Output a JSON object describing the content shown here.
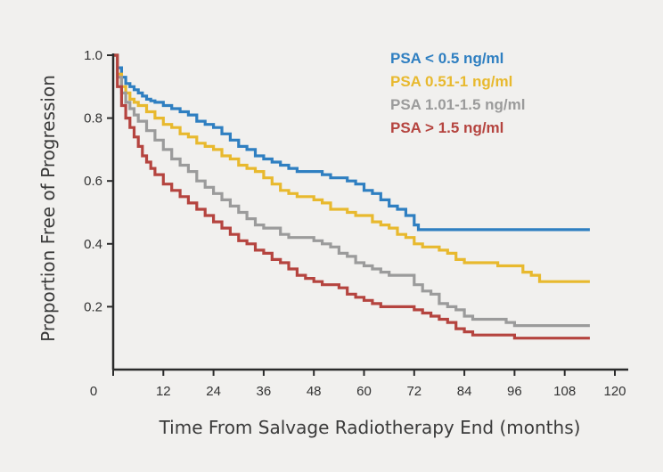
{
  "chart_data": {
    "type": "line",
    "subtype": "kaplan-meier step curves",
    "xlabel": "Time From Salvage Radiotherapy End (months)",
    "ylabel": "Proportion Free of Progression",
    "xlim": [
      0,
      120
    ],
    "ylim": [
      0,
      1.0
    ],
    "x_ticks": [
      0,
      12,
      24,
      36,
      48,
      60,
      72,
      84,
      96,
      108,
      120
    ],
    "y_ticks": [
      0.2,
      0.4,
      0.6,
      0.8,
      1.0
    ],
    "y_tick_labels": [
      "0.2",
      "0.4",
      "0.6",
      "0.8",
      "1.0"
    ],
    "grid": false,
    "legend_position": "top-right",
    "series": [
      {
        "name": "PSA < 0.5 ng/ml",
        "color": "#2f7fc1",
        "points": [
          [
            0,
            1.0
          ],
          [
            1,
            0.96
          ],
          [
            2,
            0.93
          ],
          [
            3,
            0.91
          ],
          [
            4,
            0.9
          ],
          [
            5,
            0.89
          ],
          [
            6,
            0.88
          ],
          [
            7,
            0.87
          ],
          [
            8,
            0.86
          ],
          [
            9,
            0.855
          ],
          [
            10,
            0.85
          ],
          [
            12,
            0.84
          ],
          [
            14,
            0.83
          ],
          [
            16,
            0.82
          ],
          [
            18,
            0.81
          ],
          [
            20,
            0.79
          ],
          [
            22,
            0.78
          ],
          [
            24,
            0.77
          ],
          [
            26,
            0.75
          ],
          [
            28,
            0.73
          ],
          [
            30,
            0.71
          ],
          [
            32,
            0.7
          ],
          [
            34,
            0.68
          ],
          [
            36,
            0.67
          ],
          [
            38,
            0.66
          ],
          [
            40,
            0.65
          ],
          [
            42,
            0.64
          ],
          [
            44,
            0.63
          ],
          [
            46,
            0.63
          ],
          [
            48,
            0.63
          ],
          [
            50,
            0.62
          ],
          [
            52,
            0.61
          ],
          [
            54,
            0.61
          ],
          [
            56,
            0.6
          ],
          [
            58,
            0.59
          ],
          [
            60,
            0.57
          ],
          [
            62,
            0.56
          ],
          [
            64,
            0.54
          ],
          [
            66,
            0.52
          ],
          [
            68,
            0.51
          ],
          [
            70,
            0.49
          ],
          [
            72,
            0.46
          ],
          [
            73,
            0.445
          ],
          [
            80,
            0.445
          ],
          [
            90,
            0.445
          ],
          [
            100,
            0.445
          ],
          [
            114,
            0.445
          ]
        ]
      },
      {
        "name": "PSA 0.51-1 ng/ml",
        "color": "#e8b92e",
        "points": [
          [
            0,
            1.0
          ],
          [
            1,
            0.94
          ],
          [
            2,
            0.9
          ],
          [
            3,
            0.88
          ],
          [
            4,
            0.86
          ],
          [
            5,
            0.85
          ],
          [
            6,
            0.84
          ],
          [
            8,
            0.82
          ],
          [
            10,
            0.8
          ],
          [
            12,
            0.78
          ],
          [
            14,
            0.77
          ],
          [
            16,
            0.75
          ],
          [
            18,
            0.74
          ],
          [
            20,
            0.72
          ],
          [
            22,
            0.71
          ],
          [
            24,
            0.7
          ],
          [
            26,
            0.68
          ],
          [
            28,
            0.67
          ],
          [
            30,
            0.65
          ],
          [
            32,
            0.64
          ],
          [
            34,
            0.63
          ],
          [
            36,
            0.61
          ],
          [
            38,
            0.59
          ],
          [
            40,
            0.57
          ],
          [
            42,
            0.56
          ],
          [
            44,
            0.55
          ],
          [
            48,
            0.54
          ],
          [
            50,
            0.53
          ],
          [
            52,
            0.51
          ],
          [
            56,
            0.5
          ],
          [
            58,
            0.49
          ],
          [
            62,
            0.47
          ],
          [
            64,
            0.46
          ],
          [
            66,
            0.45
          ],
          [
            68,
            0.43
          ],
          [
            70,
            0.42
          ],
          [
            72,
            0.4
          ],
          [
            74,
            0.39
          ],
          [
            76,
            0.39
          ],
          [
            78,
            0.38
          ],
          [
            80,
            0.37
          ],
          [
            82,
            0.35
          ],
          [
            84,
            0.34
          ],
          [
            90,
            0.34
          ],
          [
            92,
            0.33
          ],
          [
            96,
            0.33
          ],
          [
            98,
            0.31
          ],
          [
            100,
            0.3
          ],
          [
            102,
            0.28
          ],
          [
            106,
            0.28
          ],
          [
            114,
            0.28
          ]
        ]
      },
      {
        "name": "PSA 1.01-1.5 ng/ml",
        "color": "#9b9b9b",
        "points": [
          [
            0,
            1.0
          ],
          [
            1,
            0.93
          ],
          [
            2,
            0.88
          ],
          [
            3,
            0.85
          ],
          [
            4,
            0.83
          ],
          [
            5,
            0.81
          ],
          [
            6,
            0.79
          ],
          [
            8,
            0.76
          ],
          [
            10,
            0.73
          ],
          [
            12,
            0.7
          ],
          [
            14,
            0.67
          ],
          [
            16,
            0.65
          ],
          [
            18,
            0.63
          ],
          [
            20,
            0.6
          ],
          [
            22,
            0.58
          ],
          [
            24,
            0.56
          ],
          [
            26,
            0.54
          ],
          [
            28,
            0.52
          ],
          [
            30,
            0.5
          ],
          [
            32,
            0.48
          ],
          [
            34,
            0.46
          ],
          [
            36,
            0.45
          ],
          [
            40,
            0.43
          ],
          [
            42,
            0.42
          ],
          [
            48,
            0.41
          ],
          [
            50,
            0.4
          ],
          [
            52,
            0.39
          ],
          [
            54,
            0.37
          ],
          [
            56,
            0.36
          ],
          [
            58,
            0.34
          ],
          [
            60,
            0.33
          ],
          [
            62,
            0.32
          ],
          [
            64,
            0.31
          ],
          [
            66,
            0.3
          ],
          [
            70,
            0.3
          ],
          [
            72,
            0.27
          ],
          [
            74,
            0.25
          ],
          [
            76,
            0.24
          ],
          [
            78,
            0.21
          ],
          [
            80,
            0.2
          ],
          [
            82,
            0.19
          ],
          [
            84,
            0.17
          ],
          [
            86,
            0.16
          ],
          [
            88,
            0.16
          ],
          [
            92,
            0.16
          ],
          [
            94,
            0.15
          ],
          [
            96,
            0.14
          ],
          [
            100,
            0.14
          ],
          [
            114,
            0.14
          ]
        ]
      },
      {
        "name": "PSA > 1.5 ng/ml",
        "color": "#b5443f",
        "points": [
          [
            0,
            1.0
          ],
          [
            1,
            0.9
          ],
          [
            2,
            0.84
          ],
          [
            3,
            0.8
          ],
          [
            4,
            0.77
          ],
          [
            5,
            0.74
          ],
          [
            6,
            0.71
          ],
          [
            7,
            0.68
          ],
          [
            8,
            0.66
          ],
          [
            9,
            0.64
          ],
          [
            10,
            0.62
          ],
          [
            12,
            0.59
          ],
          [
            14,
            0.57
          ],
          [
            16,
            0.55
          ],
          [
            18,
            0.53
          ],
          [
            20,
            0.51
          ],
          [
            22,
            0.49
          ],
          [
            24,
            0.47
          ],
          [
            26,
            0.45
          ],
          [
            28,
            0.43
          ],
          [
            30,
            0.41
          ],
          [
            32,
            0.4
          ],
          [
            34,
            0.38
          ],
          [
            36,
            0.37
          ],
          [
            38,
            0.35
          ],
          [
            40,
            0.34
          ],
          [
            42,
            0.32
          ],
          [
            44,
            0.3
          ],
          [
            46,
            0.29
          ],
          [
            48,
            0.28
          ],
          [
            50,
            0.27
          ],
          [
            54,
            0.26
          ],
          [
            56,
            0.24
          ],
          [
            58,
            0.23
          ],
          [
            60,
            0.22
          ],
          [
            62,
            0.21
          ],
          [
            64,
            0.2
          ],
          [
            70,
            0.2
          ],
          [
            72,
            0.19
          ],
          [
            74,
            0.18
          ],
          [
            76,
            0.17
          ],
          [
            78,
            0.16
          ],
          [
            80,
            0.15
          ],
          [
            82,
            0.13
          ],
          [
            84,
            0.12
          ],
          [
            86,
            0.11
          ],
          [
            90,
            0.11
          ],
          [
            94,
            0.11
          ],
          [
            96,
            0.1
          ],
          [
            100,
            0.1
          ],
          [
            114,
            0.1
          ]
        ]
      }
    ]
  }
}
